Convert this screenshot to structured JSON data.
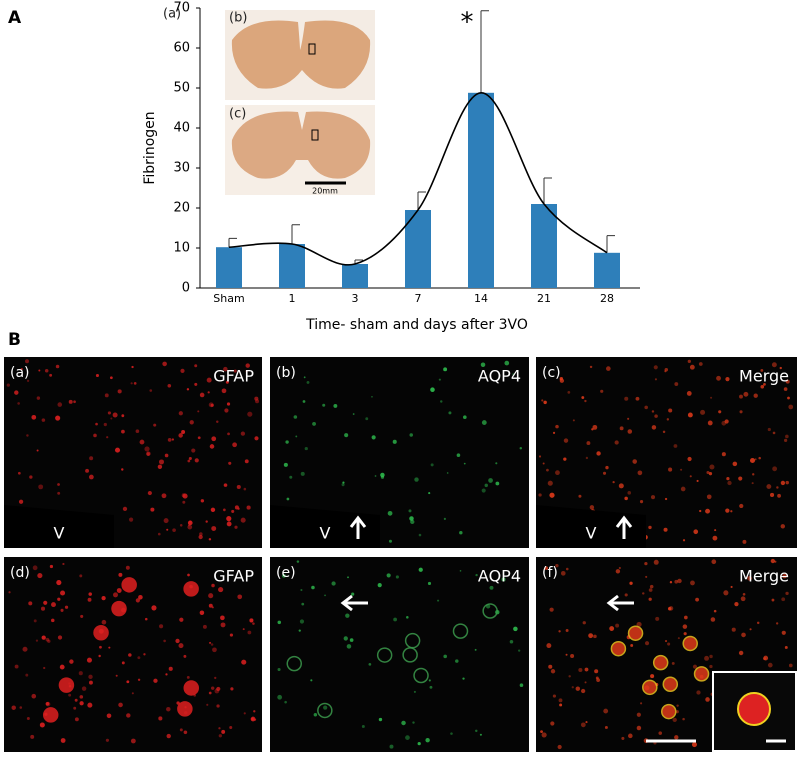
{
  "chart_data": {
    "type": "bar",
    "ylabel": "Fibrinogen",
    "xlabel": "Time- sham and days after 3VO",
    "categories": [
      "Sham",
      "1",
      "3",
      "7",
      "14",
      "21",
      "28"
    ],
    "values": [
      10.2,
      11,
      6,
      19.5,
      48.8,
      21,
      8.8
    ],
    "errors": [
      2.2,
      4.8,
      1,
      4.5,
      20.5,
      6.5,
      4.3
    ],
    "color": "#2e7fba",
    "ylim": [
      0,
      70
    ],
    "yticks": [
      0,
      10,
      20,
      30,
      40,
      50,
      60,
      70
    ],
    "fit_curve": true,
    "annotation": {
      "text": "*",
      "category": "14"
    }
  },
  "figure": {
    "label_a": "A",
    "label_b": "B",
    "inset": {
      "label": "(a)",
      "panel_b": "(b)",
      "panel_c": "(c)",
      "scale": "20mm"
    },
    "panels": [
      {
        "label": "(a)",
        "stain": "GFAP",
        "v": "V"
      },
      {
        "label": "(b)",
        "stain": "AQP4",
        "v": "V"
      },
      {
        "label": "(c)",
        "stain": "Merge",
        "v": "V"
      },
      {
        "label": "(d)",
        "stain": "GFAP"
      },
      {
        "label": "(e)",
        "stain": "AQP4"
      },
      {
        "label": "(f)",
        "stain": "Merge"
      }
    ]
  }
}
